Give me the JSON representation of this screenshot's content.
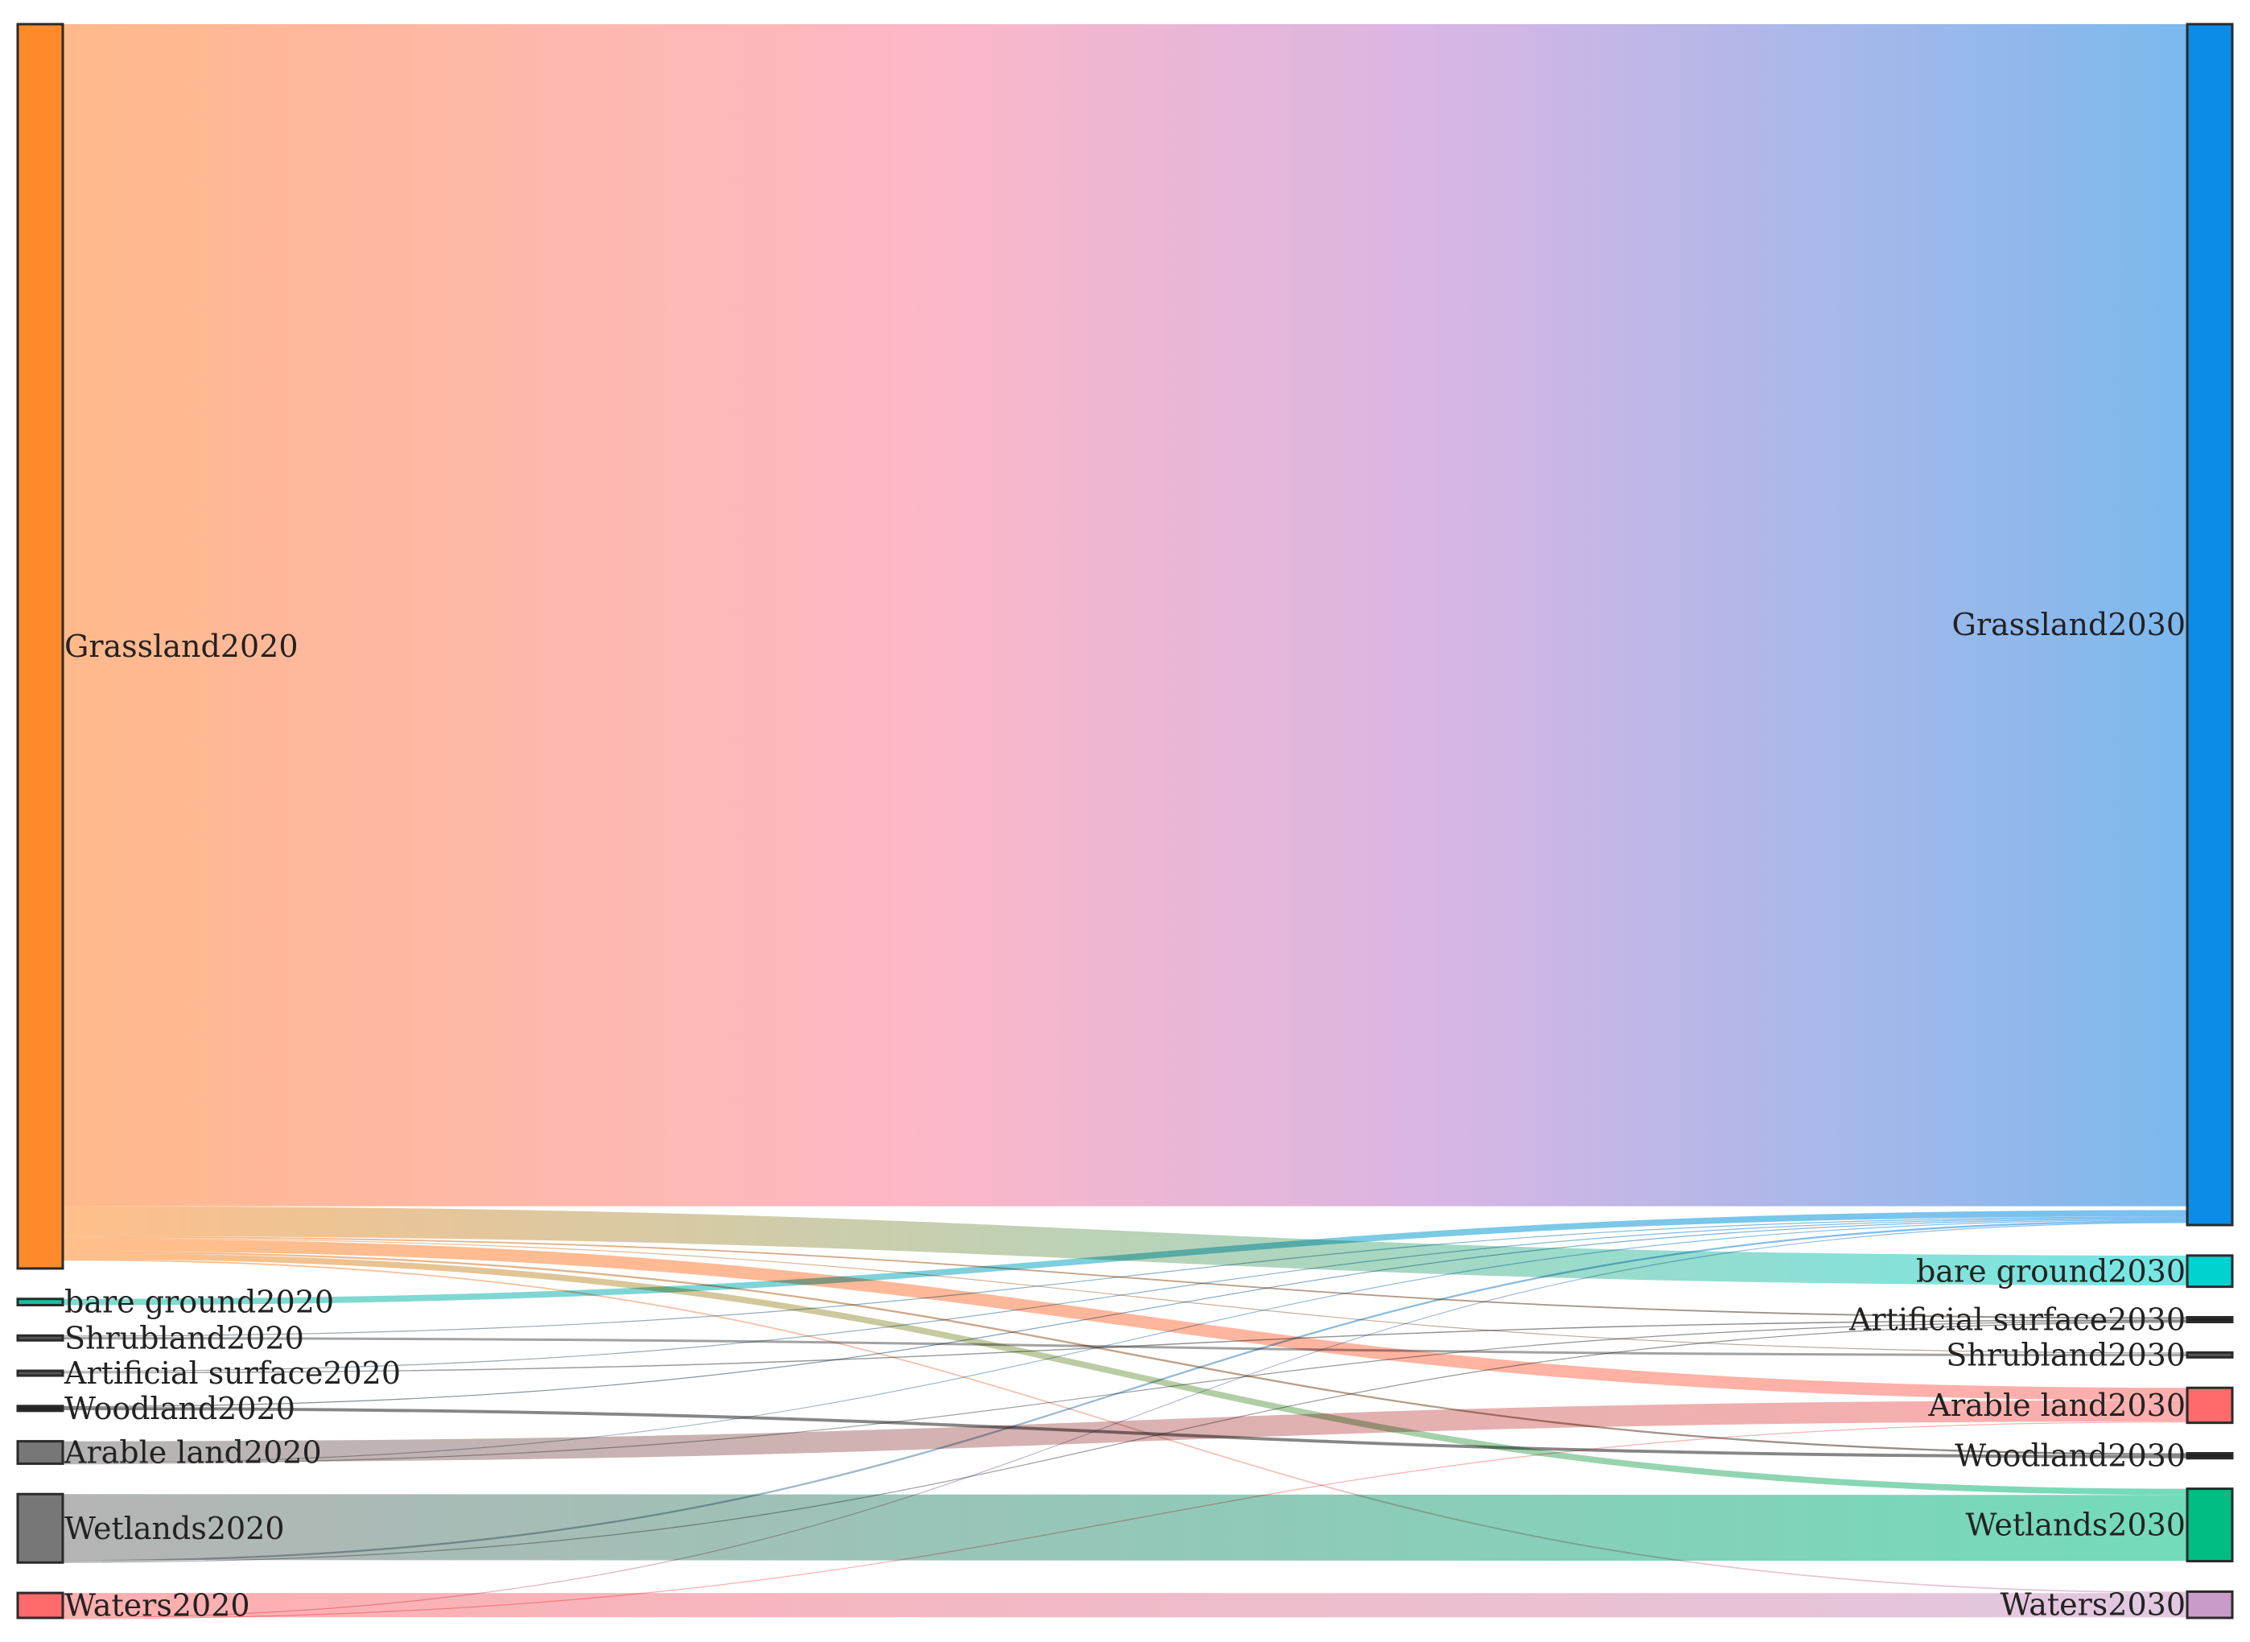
{
  "chart_data": {
    "type": "sankey",
    "title": "",
    "left_nodes": [
      {
        "id": "grass20",
        "label": "Grassland2020",
        "value": 1000,
        "color": "#FF8A2A"
      },
      {
        "id": "bare20",
        "label": "bare ground2020",
        "value": 5,
        "color": "#19C0A0"
      },
      {
        "id": "shrub20",
        "label": "Shrubland2020",
        "value": 1,
        "color": "#555555"
      },
      {
        "id": "art20",
        "label": "Artificial surface2020",
        "value": 1,
        "color": "#555555"
      },
      {
        "id": "wood20",
        "label": "Woodland2020",
        "value": 3,
        "color": "#222222"
      },
      {
        "id": "arable20",
        "label": "Arable land2020",
        "value": 18,
        "color": "#777777"
      },
      {
        "id": "wet20",
        "label": "Wetlands2020",
        "value": 55,
        "color": "#777777"
      },
      {
        "id": "waters20",
        "label": "Waters2020",
        "value": 20,
        "color": "#FF6B6B"
      }
    ],
    "right_nodes": [
      {
        "id": "grass30",
        "label": "Grassland2030",
        "value": 962,
        "color": "#0A8CE8"
      },
      {
        "id": "bare30",
        "label": "bare ground2030",
        "value": 25,
        "color": "#00D2CF"
      },
      {
        "id": "art30",
        "label": "Artificial surface2030",
        "value": 2.5,
        "color": "#222222"
      },
      {
        "id": "shrub30",
        "label": "Shrubland2030",
        "value": 1,
        "color": "#555555"
      },
      {
        "id": "arable30",
        "label": "Arable land2030",
        "value": 28,
        "color": "#FF6B6B"
      },
      {
        "id": "wood30",
        "label": "Woodland2030",
        "value": 4,
        "color": "#222222"
      },
      {
        "id": "wet30",
        "label": "Wetlands2030",
        "value": 58,
        "color": "#00BD84"
      },
      {
        "id": "waters30",
        "label": "Waters2030",
        "value": 21,
        "color": "#C99BC9"
      }
    ],
    "links": [
      {
        "source": "grass20",
        "target": "grass30",
        "value": 950
      },
      {
        "source": "grass20",
        "target": "bare30",
        "value": 24
      },
      {
        "source": "grass20",
        "target": "art30",
        "value": 1.2
      },
      {
        "source": "grass20",
        "target": "shrub30",
        "value": 0.3
      },
      {
        "source": "grass20",
        "target": "arable30",
        "value": 10
      },
      {
        "source": "grass20",
        "target": "wood30",
        "value": 1.5
      },
      {
        "source": "grass20",
        "target": "wet30",
        "value": 5
      },
      {
        "source": "grass20",
        "target": "waters30",
        "value": 1.2
      },
      {
        "source": "bare20",
        "target": "grass30",
        "value": 5
      },
      {
        "source": "shrub20",
        "target": "grass30",
        "value": 0.3
      },
      {
        "source": "shrub20",
        "target": "shrub30",
        "value": 0.5
      },
      {
        "source": "art20",
        "target": "grass30",
        "value": 0.3
      },
      {
        "source": "art20",
        "target": "art30",
        "value": 0.6
      },
      {
        "source": "wood20",
        "target": "grass30",
        "value": 0.3
      },
      {
        "source": "wood20",
        "target": "wood30",
        "value": 2.5
      },
      {
        "source": "arable20",
        "target": "arable30",
        "value": 17
      },
      {
        "source": "arable20",
        "target": "grass30",
        "value": 0.4
      },
      {
        "source": "arable20",
        "target": "art30",
        "value": 0.6
      },
      {
        "source": "wet20",
        "target": "wet30",
        "value": 53
      },
      {
        "source": "wet20",
        "target": "grass30",
        "value": 1.5
      },
      {
        "source": "wet20",
        "target": "art30",
        "value": 0.2
      },
      {
        "source": "waters20",
        "target": "waters30",
        "value": 19.5
      },
      {
        "source": "waters20",
        "target": "grass30",
        "value": 0.7
      },
      {
        "source": "waters20",
        "target": "arable30",
        "value": 0.3
      }
    ]
  }
}
